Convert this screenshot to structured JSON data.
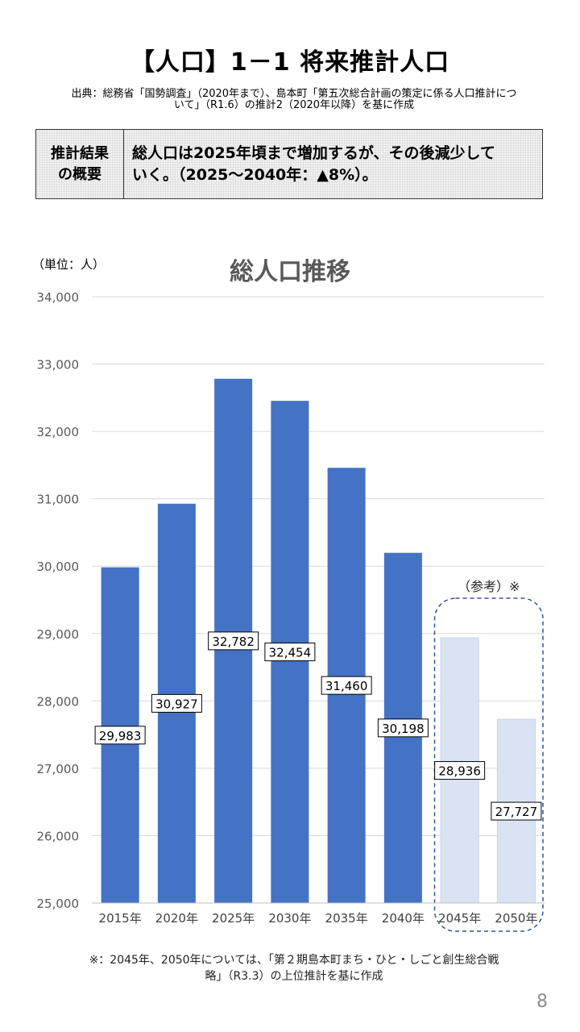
{
  "header": {
    "title": "【人口】1－1 将来推計人口",
    "source_line1": "出典：総務省「国勢調査」（2020年まで）、島本町「第五次総合計画の策定に係る人口推計につ",
    "source_line2": "いて」（R1.6）の推計2（2020年以降）を基に作成"
  },
  "summary": {
    "heading_line1": "推計結果",
    "heading_line2": "の概要",
    "text_line1": "総人口は2025年頃まで増加するが、その後減少して",
    "text_line2": "いく。（2025～2040年：▲8%）。"
  },
  "chart_data": {
    "type": "bar",
    "title": "総人口推移",
    "unit_label": "（単位：人）",
    "categories": [
      "2015年",
      "2020年",
      "2025年",
      "2030年",
      "2035年",
      "2040年",
      "2045年",
      "2050年"
    ],
    "values": [
      29983,
      30927,
      32782,
      32454,
      31460,
      30198,
      28936,
      27727
    ],
    "value_labels": [
      "29,983",
      "30,927",
      "32,782",
      "32,454",
      "31,460",
      "30,198",
      "28,936",
      "27,727"
    ],
    "ylim": [
      25000,
      34000
    ],
    "yticks": [
      25000,
      26000,
      27000,
      28000,
      29000,
      30000,
      31000,
      32000,
      33000,
      34000
    ],
    "ytick_labels": [
      "25,000",
      "26,000",
      "27,000",
      "28,000",
      "29,000",
      "30,000",
      "31,000",
      "32,000",
      "33,000",
      "34,000"
    ],
    "reference_flags": [
      false,
      false,
      false,
      false,
      false,
      false,
      true,
      true
    ],
    "reference_label": "（参考）※",
    "grid": true,
    "colors": {
      "main": "#4472c4",
      "reference": "#dae3f3",
      "reference_border": "#c5d2ea",
      "grid": "#d9d9d9",
      "dashed_box": "#2f5597"
    }
  },
  "footnote": {
    "line1": "※：2045年、2050年については、「第２期島本町まち・ひと・しごと創生総合戦",
    "line2": "略」（R3.3）の上位推計を基に作成"
  },
  "page_number": "8"
}
